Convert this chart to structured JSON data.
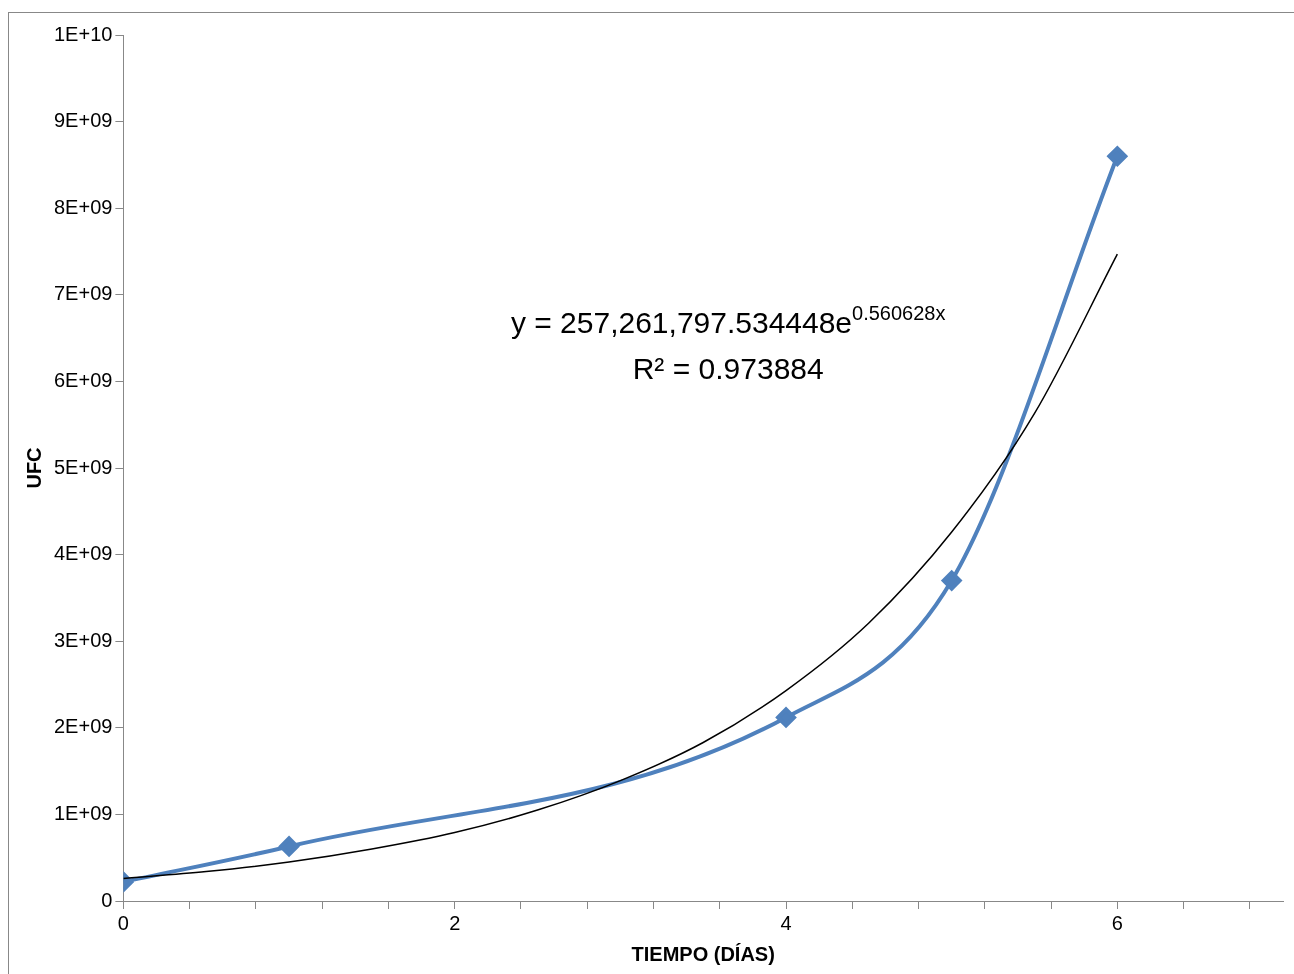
{
  "chart_data": {
    "type": "line",
    "xlabel": "TIEMPO (DÍAS)",
    "ylabel": "UFC",
    "x": [
      0,
      1,
      4,
      5,
      6
    ],
    "series": [
      {
        "color": "#4f81bd",
        "values": [
          220000000.0,
          630000000.0,
          2120000000.0,
          3700000000.0,
          8600000000.0
        ],
        "marker": "diamond"
      },
      {
        "type": "line",
        "color": "#000000",
        "marker": "none",
        "x": [
          0,
          0.5,
          1,
          1.5,
          2,
          2.5,
          3,
          3.5,
          4,
          4.5,
          5,
          5.5,
          6
        ],
        "values": [
          260000000.0,
          340000000.0,
          450000000.0,
          600000000.0,
          790000000.0,
          1050000000.0,
          1390000000.0,
          1830000000.0,
          2430000000.0,
          3210000000.0,
          4260000000.0,
          5630000000.0,
          7470000000.0
        ]
      }
    ],
    "xlim": [
      0,
      7
    ],
    "xticks": [
      0,
      {
        "value": 0.4,
        "label": null
      },
      {
        "value": 0.8,
        "label": null
      },
      {
        "value": 1.2,
        "label": null
      },
      {
        "value": 1.6,
        "label": null
      },
      2,
      {
        "value": 2.4,
        "label": null
      },
      {
        "value": 2.8,
        "label": null
      },
      {
        "value": 3.2,
        "label": null
      },
      {
        "value": 3.6,
        "label": null
      },
      4,
      {
        "value": 4.4,
        "label": null
      },
      {
        "value": 4.8,
        "label": null
      },
      {
        "value": 5.2,
        "label": null
      },
      {
        "value": 5.6,
        "label": null
      },
      6,
      {
        "value": 6.4,
        "label": null
      },
      {
        "value": 6.8,
        "label": null
      }
    ],
    "ylim": [
      0,
      10000000000.0
    ],
    "yticks": [
      0,
      {
        "value": 1000000000.0,
        "label": "1E+09"
      },
      {
        "value": 2000000000.0,
        "label": "2E+09"
      },
      {
        "value": 3000000000.0,
        "label": "3E+09"
      },
      {
        "value": 4000000000.0,
        "label": "4E+09"
      },
      {
        "value": 5000000000.0,
        "label": "5E+09"
      },
      {
        "value": 6000000000.0,
        "label": "6E+09"
      },
      {
        "value": 7000000000.0,
        "label": "7E+09"
      },
      {
        "value": 8000000000.0,
        "label": "8E+09"
      },
      {
        "value": 9000000000.0,
        "label": "9E+09"
      },
      {
        "value": 10000000000.0,
        "label": "1E+10"
      }
    ],
    "annotations": [
      "y = 257,261,797.534448e$^{0.560628x}$",
      "R² = 0.973884"
    ],
    "grid": false,
    "legend": false,
    "line_style": "solid"
  }
}
